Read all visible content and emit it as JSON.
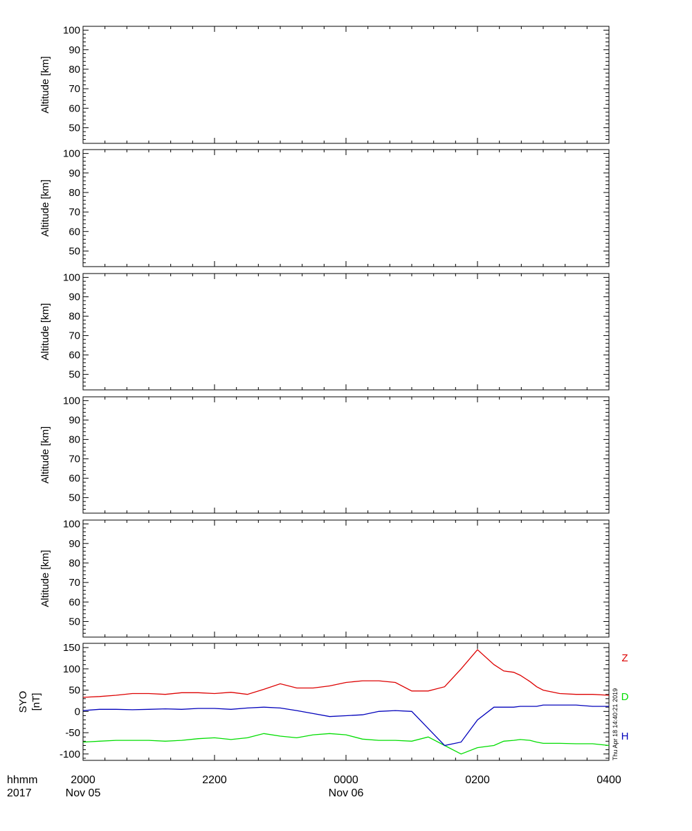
{
  "chart_data": [
    {
      "type": "line",
      "ylabel": "Altitude [km]",
      "yticks": [
        "50",
        "60",
        "70",
        "80",
        "90",
        "100"
      ],
      "ylim": [
        42,
        102
      ],
      "series": []
    },
    {
      "type": "line",
      "ylabel": "Altitude [km]",
      "yticks": [
        "50",
        "60",
        "70",
        "80",
        "90",
        "100"
      ],
      "ylim": [
        42,
        102
      ],
      "series": []
    },
    {
      "type": "line",
      "ylabel": "Altitude [km]",
      "yticks": [
        "50",
        "60",
        "70",
        "80",
        "90",
        "100"
      ],
      "ylim": [
        42,
        102
      ],
      "series": []
    },
    {
      "type": "line",
      "ylabel": "Altitude [km]",
      "yticks": [
        "50",
        "60",
        "70",
        "80",
        "90",
        "100"
      ],
      "ylim": [
        42,
        102
      ],
      "series": []
    },
    {
      "type": "line",
      "ylabel": "Altitude [km]",
      "yticks": [
        "50",
        "60",
        "70",
        "80",
        "90",
        "100"
      ],
      "ylim": [
        42,
        102
      ],
      "series": []
    },
    {
      "type": "line",
      "ylabel": "SYO",
      "yunit": "[nT]",
      "yticks": [
        "150",
        "100",
        "50",
        "0",
        "-50",
        "-100"
      ],
      "ylim": [
        -115,
        160
      ],
      "x_hours": [
        0,
        0.25,
        0.5,
        0.75,
        1.0,
        1.25,
        1.5,
        1.75,
        2.0,
        2.25,
        2.5,
        2.75,
        3.0,
        3.25,
        3.5,
        3.75,
        4.0,
        4.25,
        4.5,
        4.75,
        5.0,
        5.25,
        5.5,
        5.75,
        6.0,
        6.25,
        6.4,
        6.55,
        6.65,
        6.8,
        6.9,
        7.0,
        7.25,
        7.5,
        7.75,
        8.0
      ],
      "series": [
        {
          "name": "Z",
          "color": "#dd0000",
          "values": [
            33,
            35,
            38,
            42,
            42,
            40,
            44,
            44,
            42,
            45,
            40,
            52,
            65,
            55,
            55,
            60,
            68,
            72,
            72,
            68,
            48,
            48,
            58,
            100,
            145,
            110,
            95,
            92,
            85,
            70,
            58,
            50,
            42,
            40,
            40,
            38
          ]
        },
        {
          "name": "D",
          "color": "#00dd00",
          "values": [
            -72,
            -70,
            -68,
            -68,
            -68,
            -70,
            -68,
            -64,
            -62,
            -66,
            -62,
            -52,
            -58,
            -62,
            -55,
            -52,
            -55,
            -65,
            -68,
            -68,
            -70,
            -60,
            -80,
            -100,
            -85,
            -80,
            -70,
            -68,
            -66,
            -68,
            -72,
            -75,
            -75,
            -76,
            -76,
            -80
          ]
        },
        {
          "name": "H",
          "color": "#0000bb",
          "values": [
            2,
            5,
            5,
            4,
            5,
            6,
            5,
            7,
            7,
            5,
            8,
            10,
            8,
            2,
            -5,
            -12,
            -10,
            -8,
            0,
            2,
            0,
            -40,
            -80,
            -72,
            -20,
            10,
            10,
            10,
            12,
            12,
            12,
            15,
            15,
            15,
            12,
            12
          ]
        }
      ]
    }
  ],
  "axis": {
    "row1_label": "hhmm",
    "row2_label": "2017",
    "ticks": [
      {
        "time": "2000",
        "date": "Nov 05",
        "hour": 0
      },
      {
        "time": "2200",
        "date": "",
        "hour": 2
      },
      {
        "time": "0000",
        "date": "Nov 06",
        "hour": 4
      },
      {
        "time": "0200",
        "date": "",
        "hour": 6
      },
      {
        "time": "0400",
        "date": "",
        "hour": 8
      }
    ],
    "xlim_hours": [
      0,
      8
    ]
  },
  "footer": {
    "timestamp": "Thu Apr 18 14:40:21 2019"
  }
}
